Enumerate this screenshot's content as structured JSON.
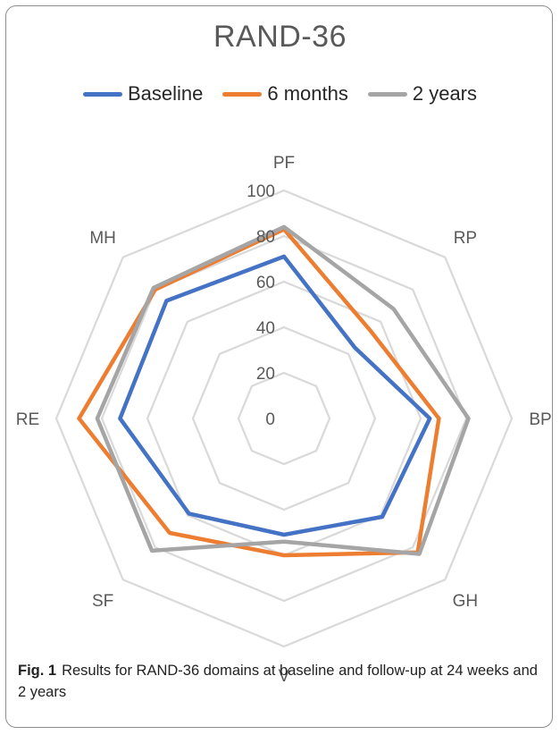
{
  "figure": {
    "caption_label": "Fig. 1",
    "caption_text": "Results for RAND-36 domains at baseline and follow-up at 24 weeks and 2 years"
  },
  "chart_data": {
    "type": "radar",
    "title": "RAND-36",
    "categories": [
      "PF",
      "RP",
      "BP",
      "GH",
      "V",
      "SF",
      "RE",
      "MH"
    ],
    "rlim": [
      0,
      100
    ],
    "ticks": [
      "0",
      "20",
      "40",
      "60",
      "80",
      "100"
    ],
    "grid": true,
    "legend_position": "top",
    "series": [
      {
        "name": "Baseline",
        "color": "#4472C4",
        "values": [
          71,
          44,
          64,
          61,
          51,
          59,
          72,
          73
        ]
      },
      {
        "name": "6 months",
        "color": "#ED7D31",
        "values": [
          83,
          54,
          68,
          83,
          60,
          71,
          90,
          80
        ]
      },
      {
        "name": "2 years",
        "color": "#A5A5A5",
        "values": [
          84,
          68,
          81,
          84,
          54,
          82,
          82,
          81
        ]
      }
    ]
  }
}
